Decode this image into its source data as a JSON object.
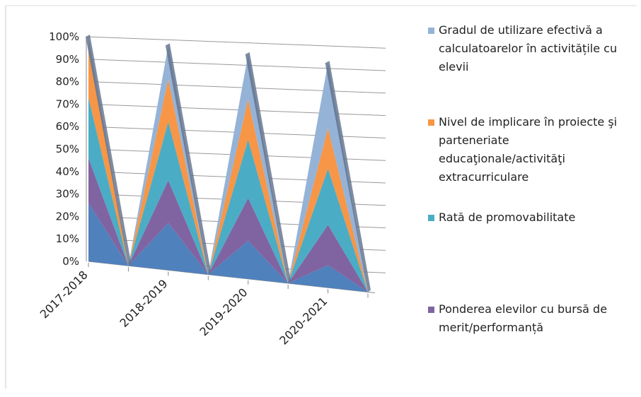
{
  "chart_data": {
    "type": "area",
    "stacked": true,
    "categories": [
      "2017-2018",
      null,
      "2018-2019",
      null,
      "2019-2020",
      null,
      "2020-2021",
      null
    ],
    "series": [
      {
        "name": null,
        "color": "#4f81bd",
        "values": [
          26,
          0,
          21,
          0,
          17,
          0,
          10,
          0
        ]
      },
      {
        "name": "Ponderea elevilor cu bursă de merit/performanță",
        "color": "#8064a2",
        "values": [
          20,
          0,
          19,
          0,
          19,
          0,
          18,
          0
        ]
      },
      {
        "name": "Rată de promovabilitate",
        "color": "#4bacc6",
        "values": [
          27,
          0,
          26,
          0,
          26,
          0,
          25,
          0
        ]
      },
      {
        "name": "Nivel de implicare în proiecte şi parteneriate educaţionale/activităţi extracurriculare",
        "color": "#f79646",
        "values": [
          22,
          0,
          19,
          0,
          18,
          0,
          18,
          0
        ]
      },
      {
        "name": "Gradul de utilizare efectivă a calculatoarelor în activitățile cu elevii",
        "color": "#95b3d7",
        "values": [
          5,
          0,
          15,
          0,
          20,
          0,
          29,
          0
        ]
      }
    ],
    "ylim": [
      0,
      100
    ],
    "yticks": [
      {
        "value": 0,
        "label": "0%"
      },
      {
        "value": 10,
        "label": "10%"
      },
      {
        "value": 20,
        "label": "20%"
      },
      {
        "value": 30,
        "label": "30%"
      },
      {
        "value": 40,
        "label": "40%"
      },
      {
        "value": 50,
        "label": "50%"
      },
      {
        "value": 60,
        "label": "60%"
      },
      {
        "value": 70,
        "label": "70%"
      },
      {
        "value": 80,
        "label": "80%"
      },
      {
        "value": 90,
        "label": "90%"
      },
      {
        "value": 100,
        "label": "100%"
      }
    ],
    "grid": true
  }
}
